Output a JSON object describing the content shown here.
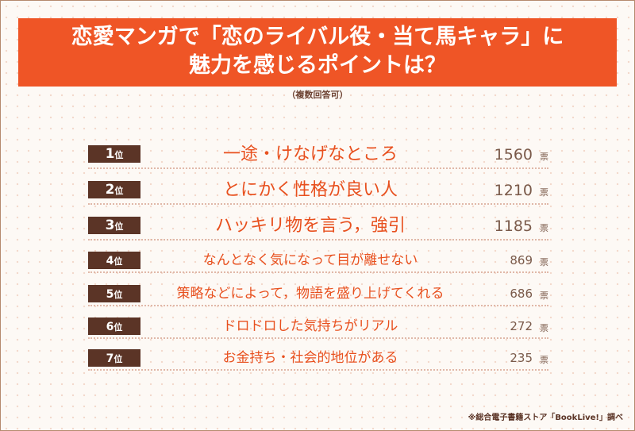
{
  "header": {
    "title_lines": [
      "恋愛マンガで「恋のライバル役・当て馬キャラ」に",
      "魅力を感じるポイントは？"
    ],
    "note": "（複数回答可）"
  },
  "rows": [
    {
      "rank": "1",
      "rank_suffix": "位",
      "item": "一途・けなげなところ",
      "votes": "1560",
      "unit": "票"
    },
    {
      "rank": "2",
      "rank_suffix": "位",
      "item": "とにかく性格が良い人",
      "votes": "1210",
      "unit": "票"
    },
    {
      "rank": "3",
      "rank_suffix": "位",
      "item": "ハッキリ物を言う，強引",
      "votes": "1185",
      "unit": "票"
    },
    {
      "rank": "4",
      "rank_suffix": "位",
      "item": "なんとなく気になって目が離せない",
      "votes": "869",
      "unit": "票"
    },
    {
      "rank": "5",
      "rank_suffix": "位",
      "item": "策略などによって，物語を盛り上げてくれる",
      "votes": "686",
      "unit": "票"
    },
    {
      "rank": "6",
      "rank_suffix": "位",
      "item": "ドロドロした気持ちがリアル",
      "votes": "272",
      "unit": "票"
    },
    {
      "rank": "7",
      "rank_suffix": "位",
      "item": "お金持ち・社会的地位がある",
      "votes": "235",
      "unit": "票"
    }
  ],
  "source": "※総合電子書籍ストア「BookLive!」調べ"
}
